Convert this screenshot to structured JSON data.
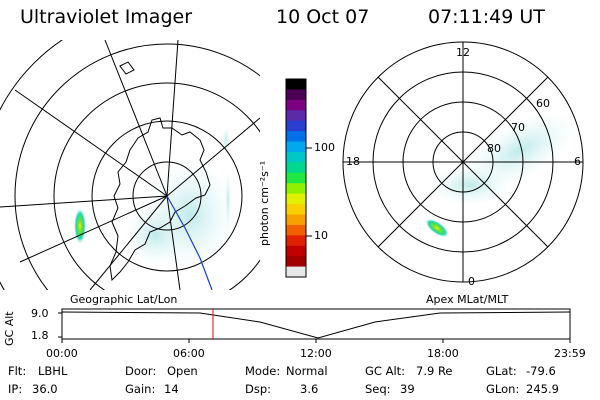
{
  "header": {
    "instrument": "Ultraviolet Imager",
    "date": "10 Oct 07",
    "time": "07:11:49 UT"
  },
  "left_panel": {
    "label": "Geographic Lat/Lon"
  },
  "right_panel": {
    "label": "Apex MLat/MLT",
    "mlt_labels": [
      "12",
      "18",
      "6",
      "0"
    ],
    "mlat_labels": [
      "60",
      "70",
      "80"
    ]
  },
  "colorbar": {
    "unit_label": "photon cm⁻²s⁻¹",
    "tick_labels": [
      "100",
      "10"
    ],
    "colors": [
      "#000000",
      "#4b0055",
      "#7a0080",
      "#5a2aa8",
      "#2a3fd0",
      "#0070e8",
      "#00a8f0",
      "#00c8c8",
      "#00d890",
      "#20e840",
      "#90f000",
      "#e0f000",
      "#f8d000",
      "#f8a000",
      "#f06000",
      "#e02000",
      "#c00000",
      "#a00000",
      "#e8e8e8"
    ]
  },
  "timeline": {
    "y_axis_label": "GC Alt",
    "y_ticks": [
      "9.0",
      "1.8"
    ],
    "x_ticks": [
      "00:00",
      "06:00",
      "12:00",
      "18:00",
      "23:59"
    ],
    "current_time_marker_color": "#ff0000"
  },
  "status": {
    "row1": [
      {
        "key": "Flt:",
        "value": "LBHL"
      },
      {
        "key": "Door:",
        "value": "Open"
      },
      {
        "key": "Mode:",
        "value": "Normal"
      },
      {
        "key": "GC Alt:",
        "value": "7.9 Re"
      },
      {
        "key": "GLat:",
        "value": "-79.6"
      }
    ],
    "row2": [
      {
        "key": "IP:",
        "value": "36.0"
      },
      {
        "key": "Gain:",
        "value": "14"
      },
      {
        "key": "Dsp:",
        "value": "3.6"
      },
      {
        "key": "Seq:",
        "value": "39"
      },
      {
        "key": "GLon:",
        "value": "245.9"
      }
    ]
  }
}
